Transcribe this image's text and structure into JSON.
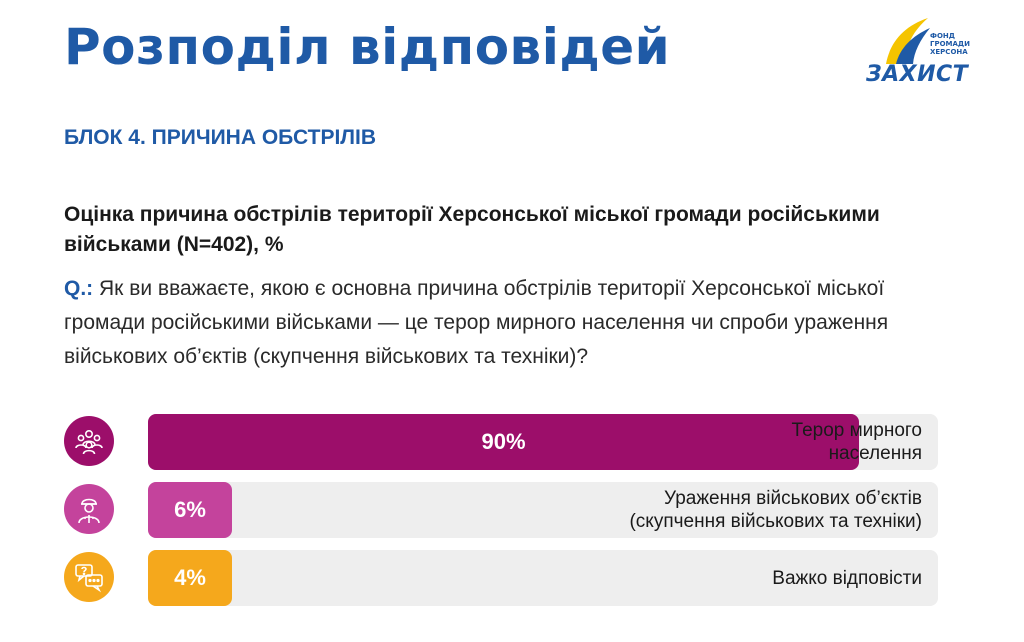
{
  "header": {
    "title": "Розподіл відповідей",
    "logo_word": "ЗАХИСТ",
    "logo_sub": "Фонд громади Херсона"
  },
  "block_label": "БЛОК 4. ПРИЧИНА ОБСТРІЛІВ",
  "question": {
    "prefix": "Q.:",
    "text": " Як ви вважаєте, якою є основна причина обстрілів території Херсонської міської громади російськими військами — це  терор мирного населення чи спроби ураження військових об’єктів (скупчення військових та техніки)?"
  },
  "colors": {
    "title_blue": "#1f5aa6",
    "terror": "#9c0e6a",
    "military": "#c4439c",
    "hard": "#f5a81c",
    "track": "#eeeeee"
  },
  "chart_data": {
    "type": "bar",
    "orientation": "horizontal",
    "title": "Оцінка причина обстрілів території Херсонської міської громади російськими військами (N=402), %",
    "xlim": [
      0,
      100
    ],
    "categories": [
      "Терор мирного\nнаселення",
      "Ураження військових об’єктів\n(скупчення військових та техніки)",
      "Важко відповісти"
    ],
    "values": [
      90,
      6,
      4
    ],
    "value_labels": [
      "90%",
      "6%",
      "4%"
    ],
    "icons": [
      "people-group-icon",
      "soldier-icon",
      "speech-bubbles-question-icon"
    ],
    "bar_colors": [
      "#9c0e6a",
      "#c4439c",
      "#f5a81c"
    ],
    "grid": false,
    "legend": "none"
  }
}
